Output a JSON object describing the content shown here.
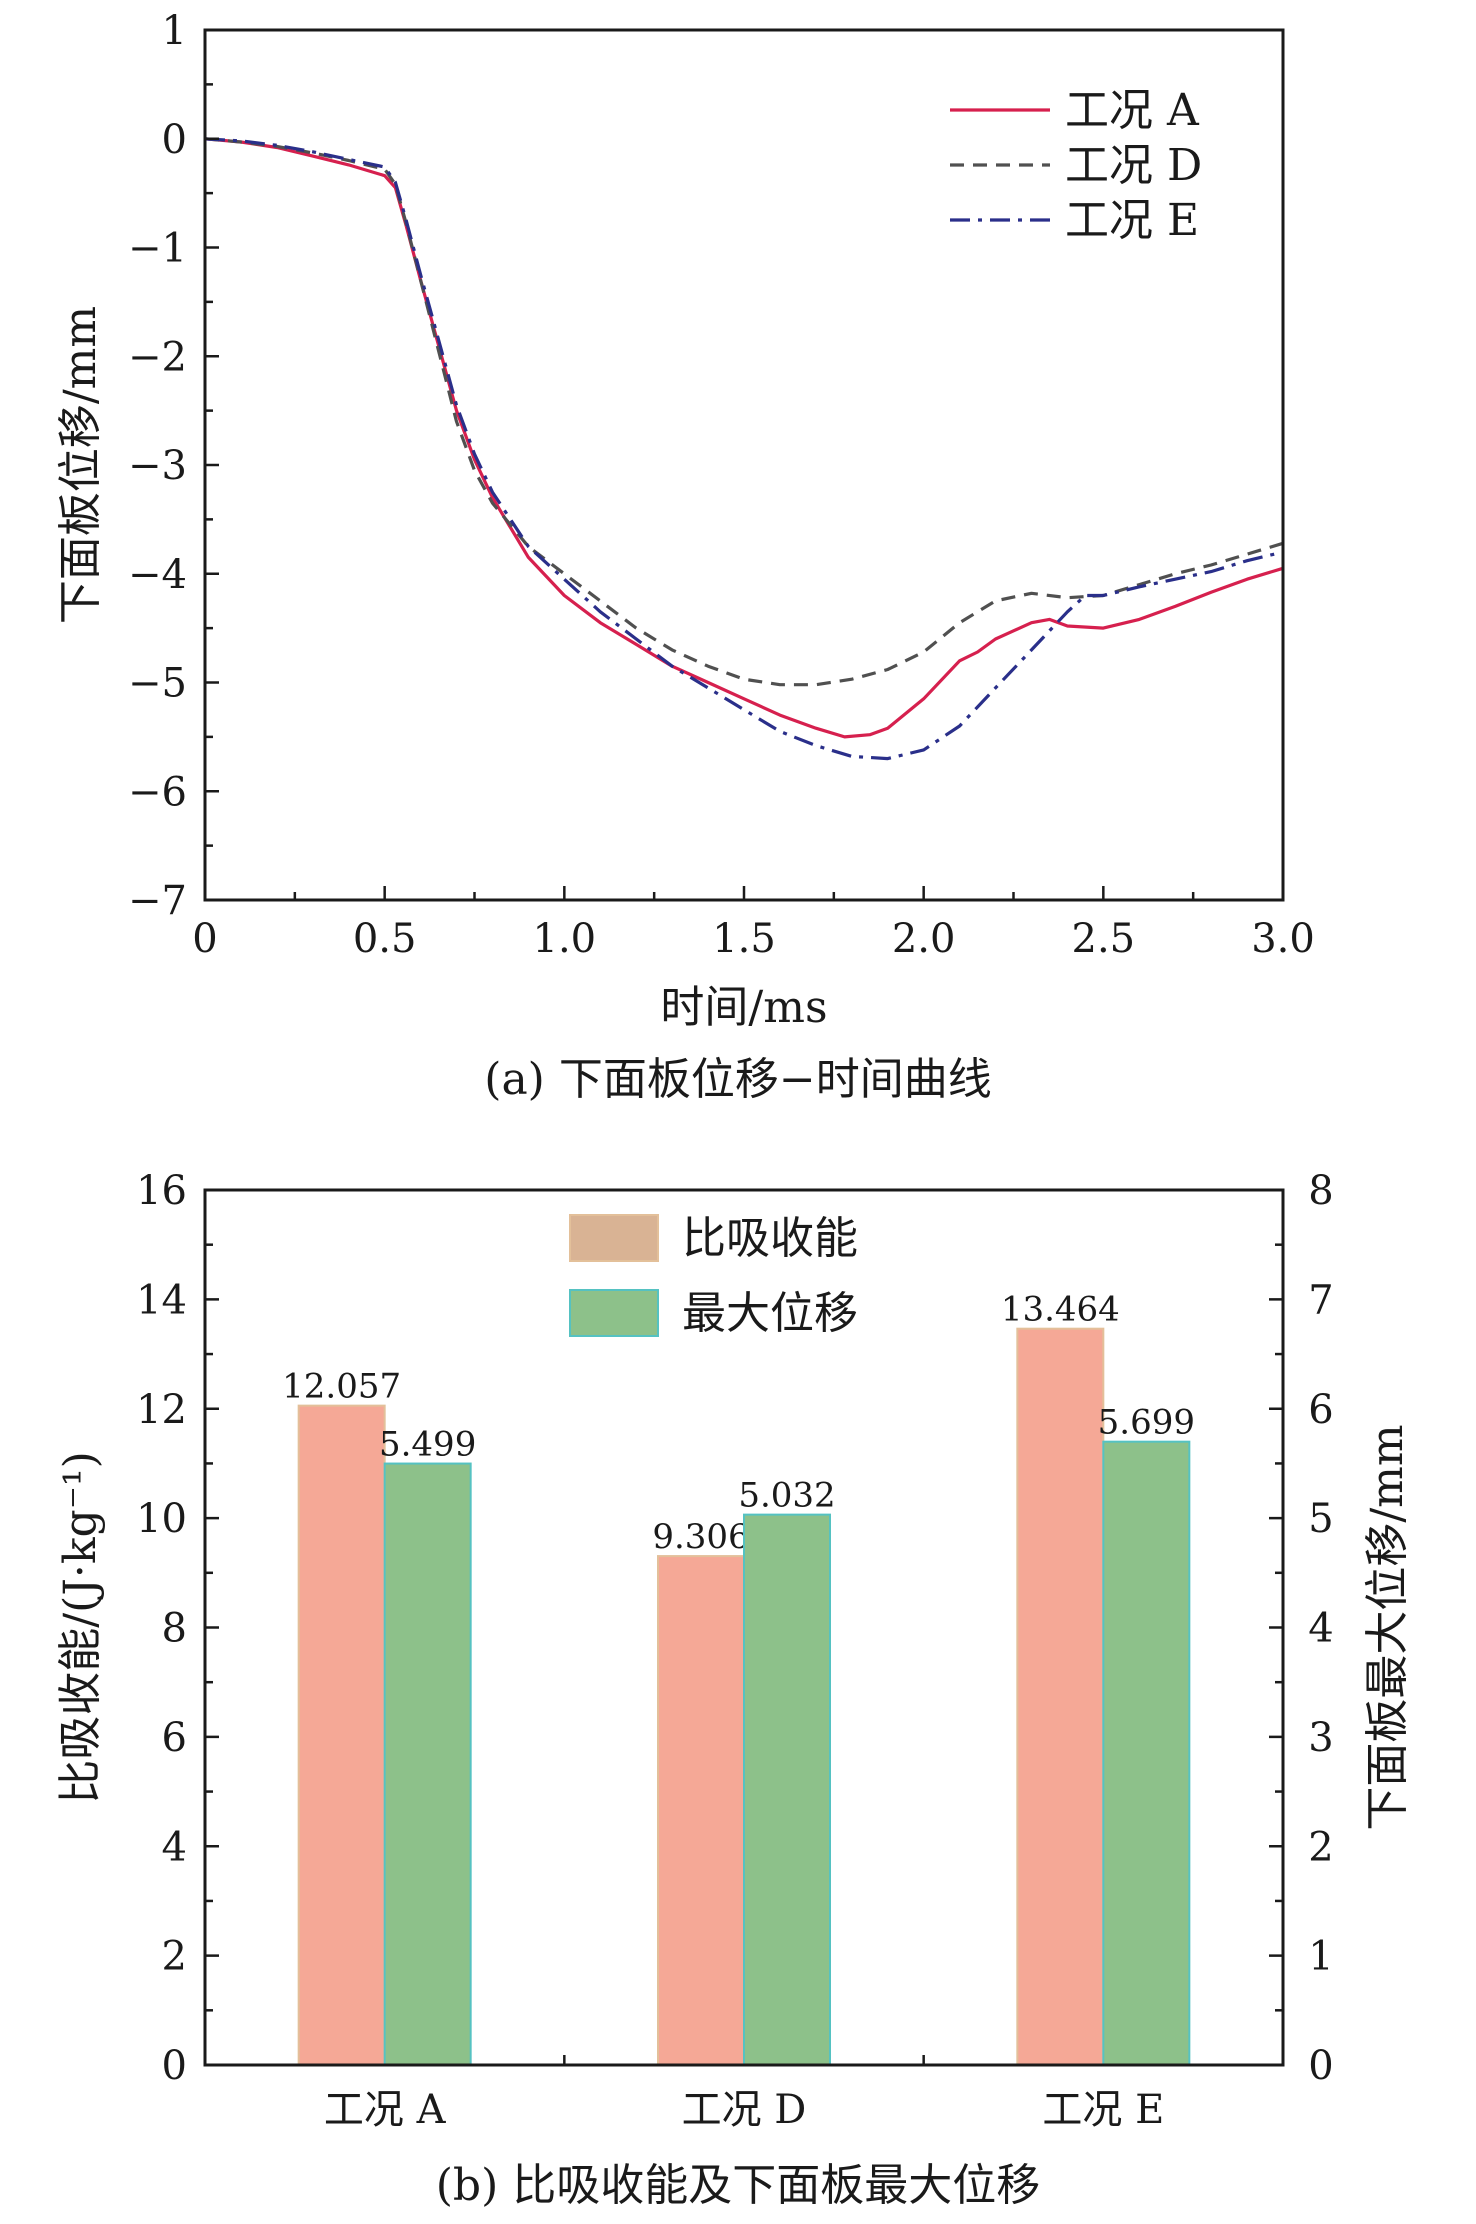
{
  "charts": [
    {
      "id": "a",
      "caption": "(a) 下面板位移−时间曲线",
      "chart_data": {
        "type": "line",
        "xlabel": "时间/ms",
        "ylabel": "下面板位移/mm",
        "xlim": [
          0,
          3.0
        ],
        "ylim": [
          -7,
          1
        ],
        "xticks": [
          0,
          0.5,
          1.0,
          1.5,
          2.0,
          2.5,
          3.0
        ],
        "xtick_labels": [
          "0",
          "0.5",
          "1.0",
          "1.5",
          "2.0",
          "2.5",
          "3.0"
        ],
        "yticks": [
          1,
          0,
          -1,
          -2,
          -3,
          -4,
          -5,
          -6,
          -7
        ],
        "ytick_labels": [
          "1",
          "0",
          "−1",
          "−2",
          "−3",
          "−4",
          "−5",
          "−6",
          "−7"
        ],
        "grid": false,
        "legend_position": "top-right",
        "series": [
          {
            "name": "工况 A",
            "color": "#d6204e",
            "dash": "solid",
            "x": [
              0,
              0.1,
              0.2,
              0.3,
              0.4,
              0.5,
              0.53,
              0.56,
              0.6,
              0.65,
              0.7,
              0.75,
              0.8,
              0.9,
              1.0,
              1.1,
              1.2,
              1.3,
              1.4,
              1.5,
              1.6,
              1.7,
              1.78,
              1.85,
              1.9,
              2.0,
              2.1,
              2.15,
              2.2,
              2.3,
              2.35,
              2.4,
              2.5,
              2.6,
              2.7,
              2.8,
              2.9,
              3.0
            ],
            "y": [
              0,
              -0.03,
              -0.08,
              -0.16,
              -0.24,
              -0.34,
              -0.45,
              -0.8,
              -1.3,
              -1.9,
              -2.5,
              -2.95,
              -3.3,
              -3.85,
              -4.2,
              -4.45,
              -4.65,
              -4.85,
              -5.0,
              -5.15,
              -5.3,
              -5.42,
              -5.5,
              -5.48,
              -5.42,
              -5.15,
              -4.8,
              -4.72,
              -4.6,
              -4.45,
              -4.42,
              -4.48,
              -4.5,
              -4.42,
              -4.3,
              -4.17,
              -4.05,
              -3.95
            ]
          },
          {
            "name": "工况 D",
            "color": "#505050",
            "dash": "dashed",
            "x": [
              0,
              0.1,
              0.2,
              0.3,
              0.4,
              0.5,
              0.53,
              0.56,
              0.6,
              0.65,
              0.7,
              0.75,
              0.8,
              0.9,
              1.0,
              1.1,
              1.2,
              1.3,
              1.4,
              1.5,
              1.6,
              1.7,
              1.8,
              1.9,
              2.0,
              2.1,
              2.2,
              2.3,
              2.4,
              2.5,
              2.6,
              2.7,
              2.8,
              2.9,
              3.0
            ],
            "y": [
              0,
              -0.03,
              -0.07,
              -0.13,
              -0.2,
              -0.28,
              -0.42,
              -0.78,
              -1.3,
              -1.95,
              -2.6,
              -3.05,
              -3.35,
              -3.75,
              -4.0,
              -4.25,
              -4.5,
              -4.7,
              -4.85,
              -4.97,
              -5.02,
              -5.02,
              -4.97,
              -4.88,
              -4.72,
              -4.45,
              -4.25,
              -4.18,
              -4.22,
              -4.2,
              -4.1,
              -4.0,
              -3.92,
              -3.82,
              -3.72
            ]
          },
          {
            "name": "工况 E",
            "color": "#2a2f8a",
            "dash": "dashdot",
            "x": [
              0,
              0.1,
              0.2,
              0.3,
              0.4,
              0.5,
              0.53,
              0.56,
              0.6,
              0.65,
              0.7,
              0.75,
              0.8,
              0.9,
              1.0,
              1.1,
              1.2,
              1.3,
              1.4,
              1.5,
              1.6,
              1.7,
              1.8,
              1.9,
              2.0,
              2.1,
              2.2,
              2.3,
              2.4,
              2.45,
              2.5,
              2.6,
              2.7,
              2.8,
              2.9,
              3.0
            ],
            "y": [
              0,
              -0.02,
              -0.06,
              -0.12,
              -0.19,
              -0.26,
              -0.4,
              -0.75,
              -1.25,
              -1.85,
              -2.45,
              -2.9,
              -3.25,
              -3.75,
              -4.05,
              -4.35,
              -4.6,
              -4.85,
              -5.05,
              -5.25,
              -5.45,
              -5.58,
              -5.68,
              -5.7,
              -5.62,
              -5.4,
              -5.05,
              -4.7,
              -4.35,
              -4.2,
              -4.2,
              -4.12,
              -4.05,
              -3.98,
              -3.88,
              -3.8
            ]
          }
        ]
      }
    },
    {
      "id": "b",
      "caption": "(b) 比吸收能及下面板最大位移",
      "chart_data": {
        "type": "bar",
        "categories": [
          "工况 A",
          "工况 D",
          "工况 E"
        ],
        "ylabel": "比吸收能/(J·kg⁻¹)",
        "ylabel_right": "下面板最大位移/mm",
        "ylim": [
          0,
          16
        ],
        "ylim_right": [
          0,
          8
        ],
        "yticks": [
          0,
          2,
          4,
          6,
          8,
          10,
          12,
          14,
          16
        ],
        "yticks_right": [
          0,
          1,
          2,
          3,
          4,
          5,
          6,
          7,
          8
        ],
        "grid": false,
        "legend_position": "top-center",
        "series": [
          {
            "name": "比吸收能",
            "axis": "left",
            "color": "#f5a896",
            "edge_color": "#e3c09a",
            "legend_color": "#d9b394",
            "values": [
              12.057,
              9.306,
              13.464
            ],
            "labels": [
              "12.057",
              "9.306",
              "13.464"
            ]
          },
          {
            "name": "最大位移",
            "axis": "right",
            "color": "#8dc18a",
            "edge_color": "#55c2c2",
            "legend_color": "#8dc18a",
            "values": [
              5.499,
              5.032,
              5.699
            ],
            "labels": [
              "5.499",
              "5.032",
              "5.699"
            ]
          }
        ]
      }
    }
  ]
}
